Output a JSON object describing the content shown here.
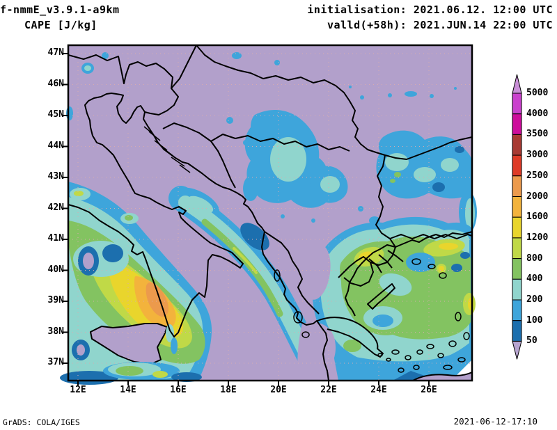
{
  "header": {
    "model": "f-nmmE_v3.9.1-a9km",
    "variable": "CAPE [J/kg]",
    "init_label": "initialisation: 2021.06.12. 12:00 UTC",
    "valid_label": "valld(+58h): 2021.JUN.14 22:00 UTC"
  },
  "footer": {
    "credit": "GrADS: COLA/IGES",
    "created": "2021-06-12-17:10"
  },
  "map": {
    "lat_ticks": [
      "47N",
      "46N",
      "45N",
      "44N",
      "43N",
      "42N",
      "41N",
      "40N",
      "39N",
      "38N",
      "37N"
    ],
    "lon_ticks": [
      "12E",
      "14E",
      "16E",
      "18E",
      "20E",
      "22E",
      "24E",
      "26E"
    ],
    "grid_color": "#d8abb0",
    "coast_color": "#000000"
  },
  "colorbar": {
    "tick_labels": [
      "5000",
      "4000",
      "3500",
      "3000",
      "2500",
      "2000",
      "1600",
      "1200",
      "800",
      "400",
      "200",
      "100",
      "50"
    ],
    "band_colors_top_to_bottom": [
      "#ca41cd",
      "#cd0d9c",
      "#a83a33",
      "#de3b27",
      "#ec9a4c",
      "#f3b33c",
      "#e9d52c",
      "#c0d947",
      "#83c361",
      "#90d5cd",
      "#3ea5db",
      "#1c6fae"
    ],
    "arrow_top_color": "#c98fd7",
    "arrow_bottom_color": "#b7a4d0"
  },
  "chart_data": {
    "type": "heatmap",
    "title": "CAPE [J/kg]",
    "model": "f-nmmE_v3.9.1-a9km",
    "initialisation": "2021.06.12. 12:00 UTC",
    "valid": "2021.JUN.14 22:00 UTC (+58h)",
    "x_axis": {
      "label": "longitude",
      "tick_labels": [
        "12E",
        "14E",
        "16E",
        "18E",
        "20E",
        "22E",
        "24E",
        "26E"
      ],
      "approx_range": [
        "11.6E",
        "27.7E"
      ]
    },
    "y_axis": {
      "label": "latitude",
      "tick_labels": [
        "47N",
        "46N",
        "45N",
        "44N",
        "43N",
        "42N",
        "41N",
        "40N",
        "39N",
        "38N",
        "37N"
      ],
      "approx_range": [
        "36.5N",
        "47.3N"
      ]
    },
    "contour_levels": [
      50,
      100,
      200,
      400,
      800,
      1200,
      1600,
      2000,
      2500,
      3000,
      3500,
      4000,
      5000
    ],
    "palette": {
      "0": "#b2a0cb",
      "50": "#1c6fae",
      "100": "#3ea5db",
      "200": "#90d5cd",
      "400": "#83c361",
      "800": "#c0d947",
      "1200": "#e9d52c",
      "1600": "#f3b33c",
      "2000": "#ec9a4c",
      "2500": "#de3b27",
      "3000": "#a83a33",
      "3500": "#cd0d9c",
      "4000": "#ca41cd",
      "5000": "#c98fd7"
    },
    "features": [
      "Maximum CAPE 2000-2500 J/kg over the SE Tyrrhenian Sea near 14.5E 39.3N",
      "Broad 400-1600 J/kg area over northern Greece and the Aegean",
      "Scattered 100-400 J/kg over the central Balkans and eastern regions",
      "Below 50 J/kg (lavender) over most of Italy, the Adriatic and the north"
    ],
    "legend_position": "right vertical colorbar with end arrows"
  }
}
